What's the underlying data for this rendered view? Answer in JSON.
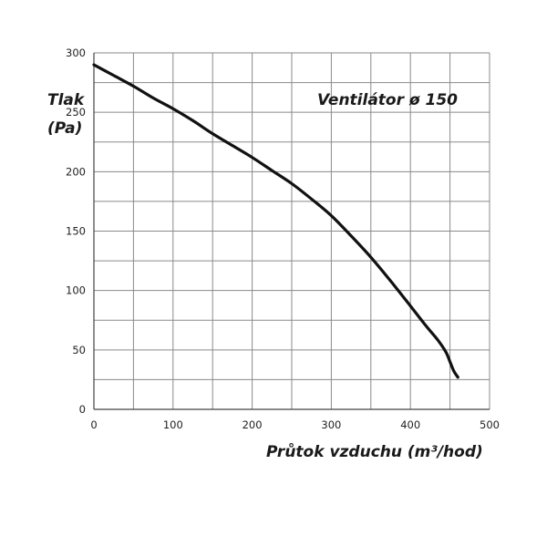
{
  "chart_data": {
    "type": "line",
    "title": "Ventilátor ø 150",
    "xlabel": "Průtok vzduchu (m³/hod)",
    "ylabel_line1": "Tlak",
    "ylabel_line2": "(Pa)",
    "xlim": [
      0,
      500
    ],
    "ylim": [
      0,
      300
    ],
    "x_ticks": [
      0,
      100,
      200,
      300,
      400,
      500
    ],
    "y_ticks": [
      0,
      50,
      100,
      150,
      200,
      250,
      300
    ],
    "x_tick_labels": [
      "0",
      "100",
      "200",
      "300",
      "400",
      "500"
    ],
    "y_tick_labels": [
      "0",
      "50",
      "100",
      "150",
      "200",
      "250",
      "300"
    ],
    "grid": true,
    "series": [
      {
        "x": [
          0,
          25,
          50,
          75,
          100,
          125,
          150,
          175,
          200,
          225,
          250,
          275,
          300,
          325,
          350,
          375,
          400,
          420,
          435,
          445,
          450,
          455,
          460
        ],
        "y": [
          290,
          281,
          272,
          262,
          253,
          243,
          232,
          222,
          212,
          201,
          190,
          177,
          163,
          146,
          128,
          108,
          87,
          70,
          58,
          48,
          40,
          32,
          27
        ],
        "color": "#111111"
      }
    ]
  }
}
